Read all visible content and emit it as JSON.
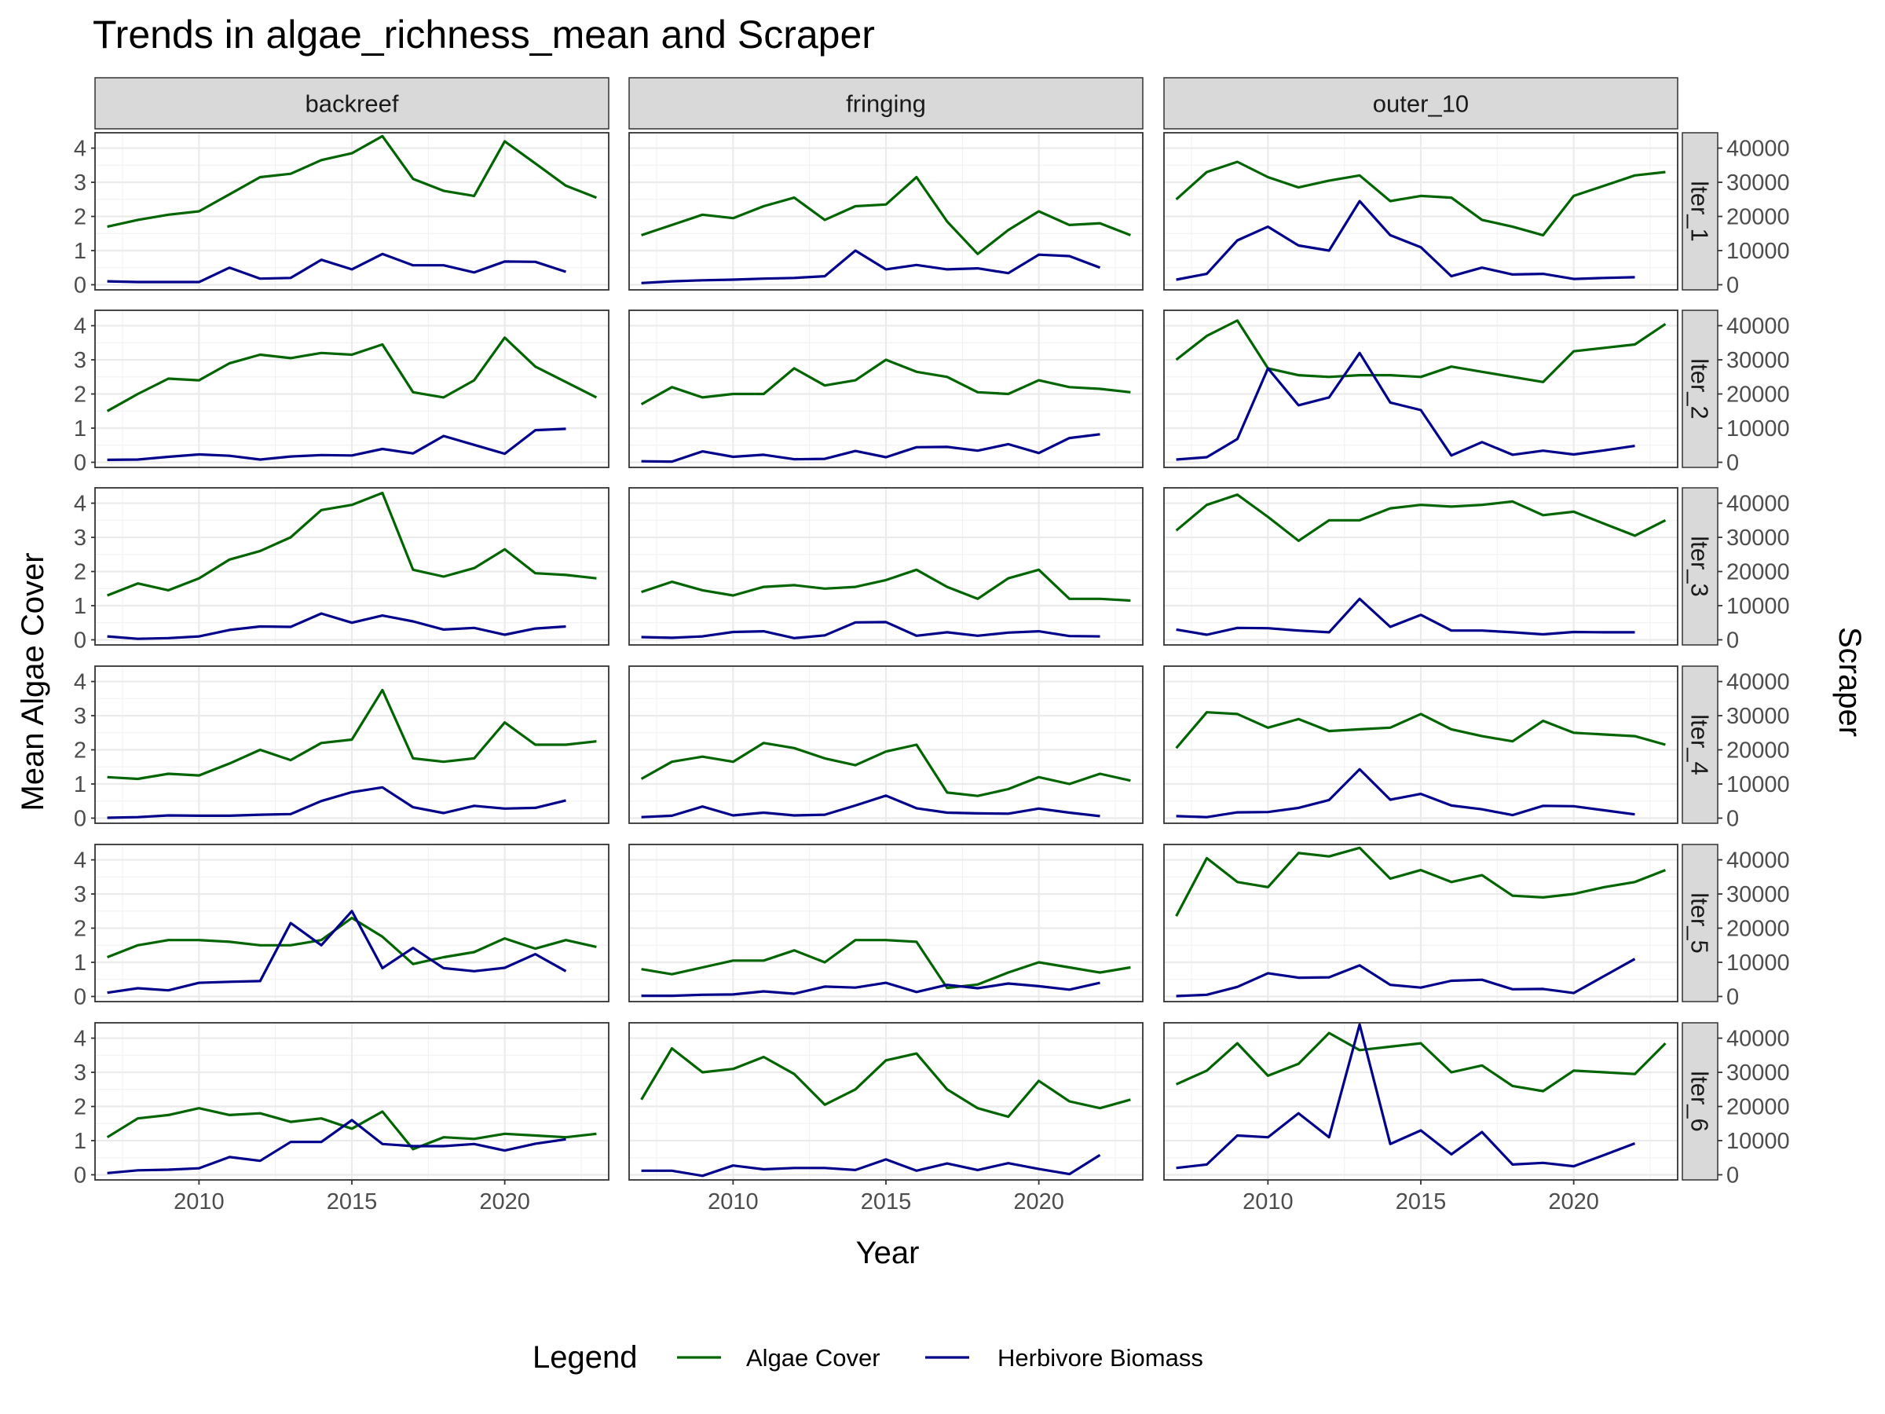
{
  "chart_data": {
    "type": "line",
    "title": "Trends in algae_richness_mean and Scraper",
    "xlabel": "Year",
    "ylabel": "Mean Algae Cover",
    "ylabel_right": "Scraper",
    "xlim": [
      2006.6,
      2023.4
    ],
    "x_ticks": [
      2010,
      2015,
      2020
    ],
    "ylim": [
      -0.15,
      4.45
    ],
    "y_ticks": [
      0,
      1,
      2,
      3,
      4
    ],
    "ylim_right": [
      -1500,
      44500
    ],
    "y_ticks_right": [
      0,
      10000,
      20000,
      30000,
      40000
    ],
    "grid": true,
    "facet_columns": [
      "backreef",
      "fringing",
      "outer_10"
    ],
    "facet_rows": [
      "lter_1",
      "lter_2",
      "lter_3",
      "lter_4",
      "lter_5",
      "lter_6"
    ],
    "legend": {
      "title": "Legend",
      "position": "bottom",
      "entries": [
        {
          "name": "Algae Cover",
          "color": "#006400"
        },
        {
          "name": "Herbivore Biomass",
          "color": "#00008b"
        }
      ]
    },
    "years_algae": [
      2007,
      2008,
      2009,
      2010,
      2011,
      2012,
      2013,
      2014,
      2015,
      2016,
      2017,
      2018,
      2019,
      2020,
      2021,
      2022,
      2023
    ],
    "years_herbivore": [
      2007,
      2008,
      2009,
      2010,
      2011,
      2012,
      2013,
      2014,
      2015,
      2016,
      2017,
      2018,
      2019,
      2020,
      2021,
      2022
    ],
    "series_note": "algae values use the left axis (Mean Algae Cover); herbivore values use the right axis (Scraper)",
    "panels": [
      {
        "column": "backreef",
        "row": "lter_1",
        "algae": [
          1.7,
          1.9,
          2.05,
          2.15,
          2.65,
          3.15,
          3.25,
          3.65,
          3.85,
          4.35,
          3.1,
          2.75,
          2.6,
          4.2,
          3.55,
          2.9,
          2.55
        ],
        "herbivore": [
          1000,
          800,
          800,
          800,
          5000,
          1800,
          2000,
          7300,
          4500,
          9000,
          5700,
          5700,
          3600,
          6800,
          6700,
          3800
        ]
      },
      {
        "column": "fringing",
        "row": "lter_1",
        "algae": [
          1.45,
          1.75,
          2.05,
          1.95,
          2.3,
          2.55,
          1.9,
          2.3,
          2.35,
          3.15,
          1.85,
          0.9,
          1.6,
          2.15,
          1.75,
          1.8,
          1.45
        ],
        "herbivore": [
          500,
          1000,
          1300,
          1500,
          1800,
          2000,
          2500,
          10000,
          4500,
          5800,
          4500,
          4800,
          3400,
          8800,
          8400,
          5000
        ]
      },
      {
        "column": "outer_10",
        "row": "lter_1",
        "algae": [
          2.5,
          3.3,
          3.6,
          3.15,
          2.85,
          3.05,
          3.2,
          2.45,
          2.6,
          2.55,
          1.9,
          1.7,
          1.45,
          2.6,
          2.9,
          3.2,
          3.3
        ],
        "herbivore": [
          1500,
          3200,
          13000,
          17000,
          11500,
          10000,
          24500,
          14500,
          11000,
          2500,
          5000,
          3000,
          3200,
          1700,
          2000,
          2200
        ]
      },
      {
        "column": "backreef",
        "row": "lter_2",
        "algae": [
          1.5,
          2.0,
          2.45,
          2.4,
          2.9,
          3.15,
          3.05,
          3.2,
          3.15,
          3.45,
          2.05,
          1.9,
          2.4,
          3.65,
          2.8,
          2.35,
          1.9
        ],
        "herbivore": [
          700,
          800,
          1600,
          2300,
          1900,
          800,
          1700,
          2100,
          2000,
          3900,
          2600,
          7700,
          5100,
          2500,
          9400,
          9800
        ]
      },
      {
        "column": "fringing",
        "row": "lter_2",
        "algae": [
          1.7,
          2.2,
          1.9,
          2.0,
          2.0,
          2.75,
          2.25,
          2.4,
          3.0,
          2.65,
          2.5,
          2.05,
          2.0,
          2.4,
          2.2,
          2.15,
          2.05
        ],
        "herbivore": [
          300,
          200,
          3200,
          1600,
          2200,
          900,
          1000,
          3300,
          1500,
          4400,
          4500,
          3400,
          5300,
          2700,
          7100,
          8200
        ]
      },
      {
        "column": "outer_10",
        "row": "lter_2",
        "algae": [
          3.0,
          3.7,
          4.15,
          2.75,
          2.55,
          2.5,
          2.55,
          2.55,
          2.5,
          2.8,
          2.65,
          2.5,
          2.35,
          3.25,
          3.35,
          3.45,
          4.05
        ],
        "herbivore": [
          800,
          1500,
          6800,
          27500,
          16700,
          19000,
          32000,
          17500,
          15300,
          2000,
          5900,
          2200,
          3400,
          2300,
          3500,
          4800
        ]
      },
      {
        "column": "backreef",
        "row": "lter_3",
        "algae": [
          1.3,
          1.65,
          1.45,
          1.8,
          2.35,
          2.6,
          3.0,
          3.8,
          3.95,
          4.3,
          2.05,
          1.85,
          2.1,
          2.65,
          1.95,
          1.9,
          1.8
        ],
        "herbivore": [
          1000,
          300,
          500,
          1000,
          2900,
          3900,
          3800,
          7700,
          5000,
          7100,
          5400,
          3000,
          3500,
          1500,
          3300,
          3900
        ]
      },
      {
        "column": "fringing",
        "row": "lter_3",
        "algae": [
          1.4,
          1.7,
          1.45,
          1.3,
          1.55,
          1.6,
          1.5,
          1.55,
          1.75,
          2.05,
          1.55,
          1.2,
          1.8,
          2.05,
          1.2,
          1.2,
          1.15
        ],
        "herbivore": [
          800,
          600,
          1000,
          2300,
          2500,
          500,
          1300,
          5100,
          5200,
          1200,
          2200,
          1200,
          2100,
          2500,
          1100,
          1000
        ]
      },
      {
        "column": "outer_10",
        "row": "lter_3",
        "algae": [
          3.2,
          3.95,
          4.25,
          3.6,
          2.9,
          3.5,
          3.5,
          3.85,
          3.95,
          3.9,
          3.95,
          4.05,
          3.65,
          3.75,
          3.4,
          3.05,
          3.5
        ],
        "herbivore": [
          3000,
          1500,
          3500,
          3400,
          2700,
          2200,
          12000,
          3800,
          7300,
          2700,
          2700,
          2200,
          1600,
          2300,
          2200,
          2200
        ]
      },
      {
        "column": "backreef",
        "row": "lter_4",
        "algae": [
          1.2,
          1.15,
          1.3,
          1.25,
          1.6,
          2.0,
          1.7,
          2.2,
          2.3,
          3.75,
          1.75,
          1.65,
          1.75,
          2.8,
          2.15,
          2.15,
          2.25
        ],
        "herbivore": [
          100,
          300,
          800,
          700,
          700,
          1000,
          1200,
          5000,
          7600,
          9000,
          3200,
          1500,
          3600,
          2800,
          3000,
          5200
        ]
      },
      {
        "column": "fringing",
        "row": "lter_4",
        "algae": [
          1.15,
          1.65,
          1.8,
          1.65,
          2.2,
          2.05,
          1.75,
          1.55,
          1.95,
          2.15,
          0.75,
          0.65,
          0.85,
          1.2,
          1.0,
          1.3,
          1.1
        ],
        "herbivore": [
          300,
          700,
          3400,
          800,
          1600,
          800,
          1000,
          3700,
          6600,
          2900,
          1600,
          1400,
          1300,
          2800,
          1600,
          600
        ]
      },
      {
        "column": "outer_10",
        "row": "lter_4",
        "algae": [
          2.05,
          3.1,
          3.05,
          2.65,
          2.9,
          2.55,
          2.6,
          2.65,
          3.05,
          2.6,
          2.4,
          2.25,
          2.85,
          2.5,
          2.45,
          2.4,
          2.15
        ],
        "herbivore": [
          600,
          300,
          1700,
          1800,
          3000,
          5300,
          14300,
          5400,
          7100,
          3700,
          2600,
          900,
          3600,
          3500,
          2300,
          1100
        ]
      },
      {
        "column": "backreef",
        "row": "lter_5",
        "algae": [
          1.15,
          1.5,
          1.65,
          1.65,
          1.6,
          1.5,
          1.5,
          1.65,
          2.3,
          1.75,
          0.95,
          1.15,
          1.3,
          1.7,
          1.4,
          1.65,
          1.45
        ],
        "herbivore": [
          1100,
          2400,
          1800,
          4000,
          4300,
          4500,
          21500,
          15000,
          25000,
          8300,
          14200,
          8300,
          7400,
          8400,
          12400,
          7400
        ]
      },
      {
        "column": "fringing",
        "row": "lter_5",
        "algae": [
          0.8,
          0.65,
          0.85,
          1.05,
          1.05,
          1.35,
          1.0,
          1.65,
          1.65,
          1.6,
          0.25,
          0.35,
          0.7,
          1.0,
          0.85,
          0.7,
          0.85
        ],
        "herbivore": [
          200,
          200,
          500,
          600,
          1500,
          800,
          2900,
          2600,
          4000,
          1300,
          3400,
          2400,
          3800,
          3000,
          2000,
          4000
        ]
      },
      {
        "column": "outer_10",
        "row": "lter_5",
        "algae": [
          2.35,
          4.05,
          3.35,
          3.2,
          4.2,
          4.1,
          4.35,
          3.45,
          3.7,
          3.35,
          3.55,
          2.95,
          2.9,
          3.0,
          3.2,
          3.35,
          3.7
        ],
        "herbivore": [
          100,
          500,
          2800,
          6800,
          5500,
          5600,
          9100,
          3400,
          2600,
          4600,
          4900,
          2100,
          2200,
          1000,
          6000,
          11000
        ]
      },
      {
        "column": "backreef",
        "row": "lter_6",
        "algae": [
          1.1,
          1.65,
          1.75,
          1.95,
          1.75,
          1.8,
          1.55,
          1.65,
          1.35,
          1.85,
          0.75,
          1.1,
          1.05,
          1.2,
          1.15,
          1.1,
          1.2
        ],
        "herbivore": [
          500,
          1300,
          1500,
          1900,
          5200,
          4100,
          9600,
          9600,
          16000,
          9000,
          8400,
          8400,
          9000,
          7100,
          9100,
          10400
        ]
      },
      {
        "column": "fringing",
        "row": "lter_6",
        "algae": [
          2.2,
          3.7,
          3.0,
          3.1,
          3.45,
          2.95,
          2.05,
          2.5,
          3.35,
          3.55,
          2.5,
          1.95,
          1.7,
          2.75,
          2.15,
          1.95,
          2.2
        ],
        "herbivore": [
          1200,
          1200,
          -300,
          2700,
          1600,
          2000,
          2000,
          1400,
          4500,
          1200,
          3300,
          1400,
          3400,
          1700,
          200,
          5800
        ]
      },
      {
        "column": "outer_10",
        "row": "lter_6",
        "algae": [
          2.65,
          3.05,
          3.85,
          2.9,
          3.25,
          4.15,
          3.65,
          3.75,
          3.85,
          3.0,
          3.2,
          2.6,
          2.45,
          3.05,
          3.0,
          2.95,
          3.85
        ],
        "herbivore": [
          2000,
          3000,
          11500,
          11000,
          18000,
          11000,
          44000,
          9000,
          13000,
          6000,
          12500,
          3000,
          3500,
          2500,
          5800,
          9200
        ]
      }
    ]
  }
}
